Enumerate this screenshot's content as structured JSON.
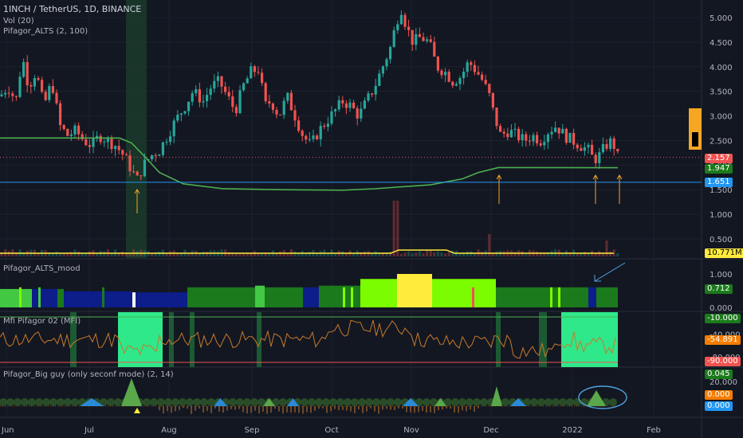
{
  "header": {
    "symbol_line": "1INCH / TetherUS, 1D, BINANCE",
    "vol_label": "Vol (20)",
    "indicator1_label": "Pifagor_ALTS (2, 100)"
  },
  "panes": {
    "mood_title": "Pifagor_ALTS_mood",
    "mfi_title": "Mfi Pifagor 02 (MFI)",
    "bigguy_title": "Pifagor_Big guy (only seconf mode) (2, 14)"
  },
  "price_axis": {
    "ticks": [
      "5.000",
      "4.500",
      "4.000",
      "3.500",
      "3.000",
      "2.500",
      "2.000",
      "1.500",
      "1.000",
      "0.500"
    ]
  },
  "price_tags": {
    "last": "2.157",
    "ma": "1.947",
    "hline": "1.651",
    "volume": "10.771M"
  },
  "mood_axis": {
    "ticks": [
      "1.000",
      "0.500",
      "0.000"
    ],
    "tag": "0.712"
  },
  "mfi_axis": {
    "ticks": [
      "-10.000",
      "-40.000",
      "-80.000",
      "-90.000"
    ],
    "tags": [
      "-10.000",
      "-54.891",
      "-90.000"
    ]
  },
  "bigguy_axis": {
    "ticks": [
      "20.000"
    ],
    "tags": [
      "0.045",
      "0.000",
      "0.000"
    ]
  },
  "time_axis": {
    "labels": [
      "Jun",
      "Jul",
      "Aug",
      "Sep",
      "Oct",
      "Nov",
      "Dec",
      "2022",
      "Feb"
    ]
  },
  "colors": {
    "bg": "#131722",
    "up": "#26a69a",
    "down": "#ef5350",
    "ma": "#4caf50",
    "hline": "#2196f3",
    "volume_line": "#ffeb3b",
    "mood_dark_green": "#1b7a1b",
    "mood_green": "#43c843",
    "mood_lime": "#7cfc00",
    "mood_navy": "#0d1d8a",
    "mood_yellow": "#ffeb3b",
    "mfi_line": "#c87a2a",
    "mfi_zone": "#2ee88a",
    "arrow": "#f5a623"
  },
  "chart_data": [
    {
      "type": "line",
      "title": "1INCH / TetherUS, 1D, BINANCE",
      "x": [
        "Jun",
        "Jul",
        "Aug",
        "Sep",
        "Oct",
        "Nov",
        "Dec",
        "2022",
        "Feb"
      ],
      "ylim": [
        0.3,
        5.4
      ],
      "series": [
        {
          "name": "Pifagor_ALTS (2, 100)",
          "values": [
            2.55,
            2.55,
            1.7,
            1.5,
            1.55,
            1.6,
            1.95,
            1.95,
            null
          ]
        }
      ],
      "price_close_by_month": [
        3.5,
        2.3,
        2.0,
        3.7,
        2.9,
        4.7,
        2.5,
        2.3,
        null
      ],
      "last_price": 2.157,
      "ma_value": 1.947,
      "horizontal_level": 1.651
    },
    {
      "type": "area",
      "title": "Pifagor_ALTS_mood",
      "ylim": [
        0,
        1.0
      ],
      "current": 0.712
    },
    {
      "type": "line",
      "title": "Mfi Pifagor 02 (MFI)",
      "ylim": [
        -90,
        -10
      ],
      "current": -54.891
    },
    {
      "type": "area",
      "title": "Pifagor_Big guy (only seconf mode) (2, 14)",
      "ylim": [
        -10,
        20
      ],
      "current": 0.045
    }
  ]
}
